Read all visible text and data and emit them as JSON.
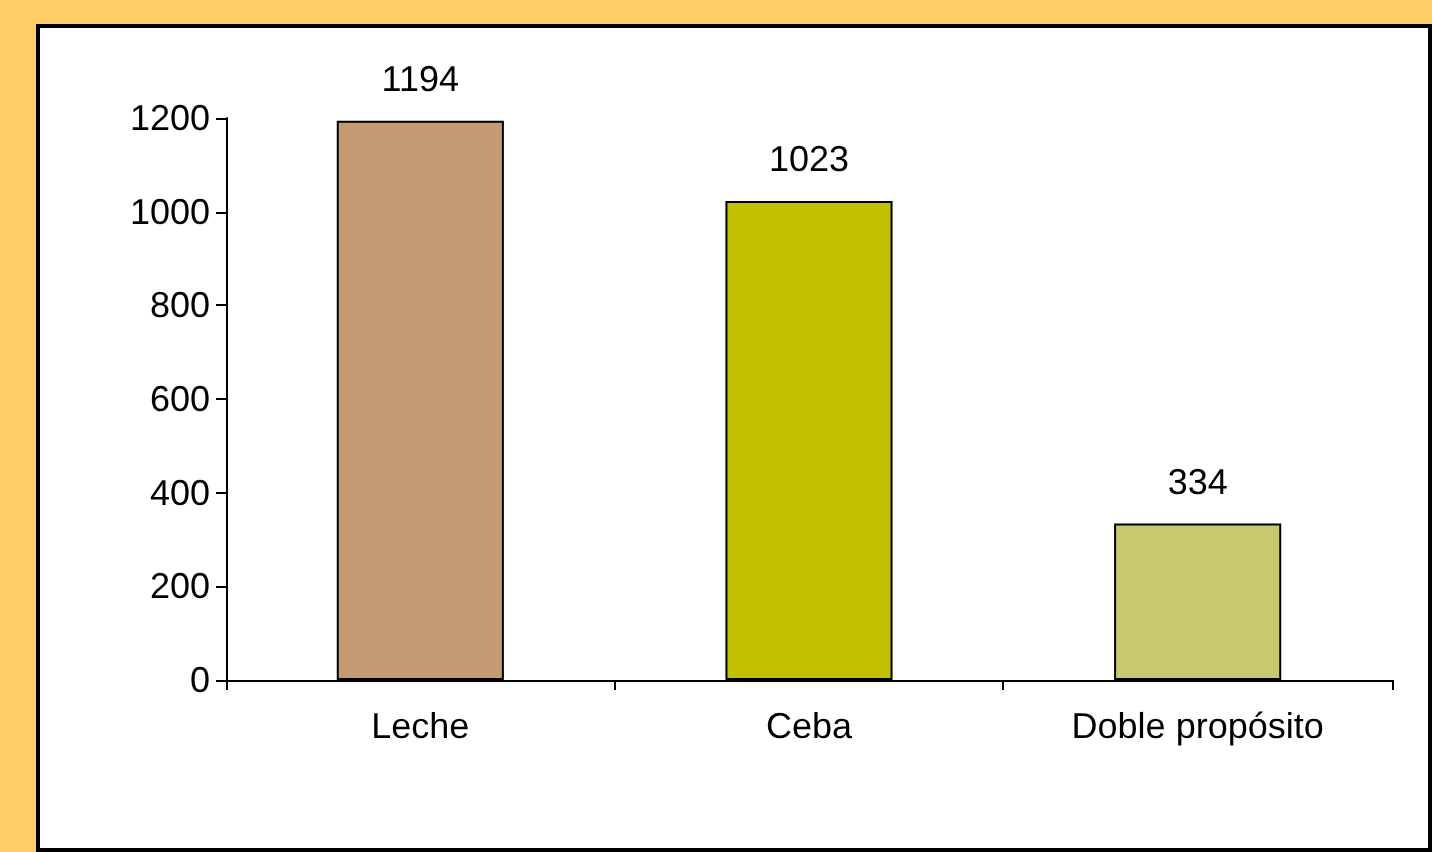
{
  "chart_data": {
    "type": "bar",
    "categories": [
      "Leche",
      "Ceba",
      "Doble propósito"
    ],
    "values": [
      1194,
      1023,
      334
    ],
    "colors": [
      "#c49a72",
      "#c0c000",
      "#c8c870"
    ],
    "ylim": [
      0,
      1200
    ],
    "yticks": [
      0,
      200,
      400,
      600,
      800,
      1000,
      1200
    ],
    "data_labels": true,
    "grid": false
  }
}
